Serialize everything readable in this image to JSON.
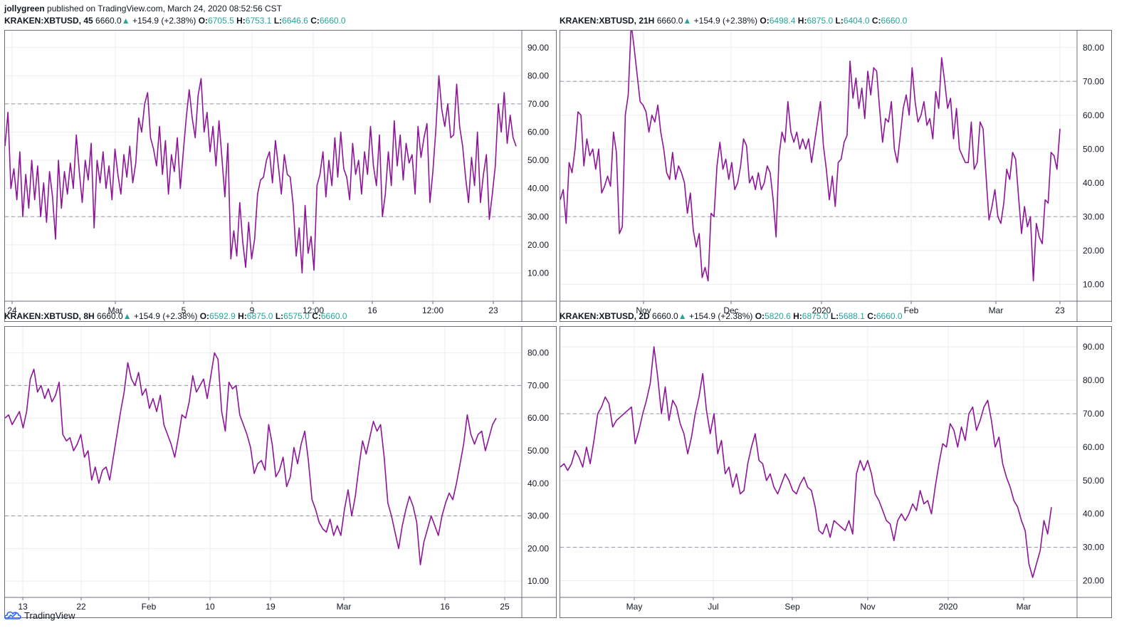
{
  "publish": {
    "author": "jollygreen",
    "text": "published on TradingView.com, March 24, 2020 08:52:56 CST"
  },
  "footer": {
    "brand": "TradingView",
    "icon": "tradingview-cloud-logo-icon"
  },
  "colors": {
    "line": "#8e1599",
    "up": "#26a69a",
    "grid": "#e9edf2",
    "level": "#9598a1"
  },
  "panels": [
    {
      "symbol": "KRAKEN:XBTUSD, 45",
      "price": "6660.0",
      "arrow": "▲",
      "change": "+154.9 (+2.38%)",
      "o": "6705.5",
      "h": "6753.1",
      "l": "6646.6",
      "c": "6660.0",
      "chart_data": {
        "type": "line",
        "y_ticks": [
          "90.00",
          "80.00",
          "70.00",
          "60.00",
          "50.00",
          "40.00",
          "30.00",
          "20.00",
          "10.00"
        ],
        "ylim": [
          0,
          96
        ],
        "levels": [
          70,
          30
        ],
        "x_ticks": [
          "24",
          "Mar",
          "5",
          "9",
          "12:00",
          "16",
          "12:00",
          "23"
        ],
        "series": [
          {
            "values": [
              55,
              67,
              40,
              47,
              36,
              53,
              30,
              45,
              33,
              50,
              36,
              48,
              30,
              42,
              28,
              46,
              37,
              22,
              50,
              33,
              46,
              38,
              49,
              40,
              59,
              46,
              35,
              50,
              43,
              56,
              26,
              50,
              42,
              53,
              40,
              48,
              36,
              54,
              45,
              38,
              52,
              44,
              55,
              42,
              49,
              65,
              60,
              70,
              74,
              58,
              54,
              48,
              62,
              45,
              57,
              38,
              52,
              46,
              58,
              40,
              53,
              65,
              75,
              65,
              58,
              73,
              79,
              60,
              67,
              53,
              62,
              48,
              64,
              51,
              37,
              56,
              15,
              25,
              16,
              35,
              21,
              12,
              28,
              15,
              22,
              38,
              43,
              44,
              50,
              53,
              42,
              57,
              48,
              38,
              52,
              45,
              44,
              34,
              16,
              26,
              10,
              34,
              17,
              23,
              11,
              41,
              45,
              53,
              37,
              50,
              41,
              58,
              44,
              60,
              47,
              44,
              36,
              56,
              45,
              50,
              38,
              53,
              45,
              62,
              48,
              41,
              59,
              30,
              38,
              53,
              41,
              64,
              48,
              59,
              43,
              56,
              49,
              52,
              38,
              62,
              51,
              58,
              63,
              35,
              46,
              61,
              80,
              68,
              62,
              70,
              58,
              59,
              77,
              62,
              55,
              44,
              35,
              51,
              41,
              60,
              35,
              45,
              52,
              29,
              38,
              48,
              70,
              60,
              74,
              56,
              66,
              58,
              55
            ]
          }
        ]
      }
    },
    {
      "symbol": "KRAKEN:XBTUSD, 21H",
      "price": "6660.0",
      "arrow": "▲",
      "change": "+154.9 (+2.38%)",
      "o": "6498.4",
      "h": "6875.0",
      "l": "6404.0",
      "c": "6660.0",
      "chart_data": {
        "type": "line",
        "y_ticks": [
          "80.00",
          "70.00",
          "60.00",
          "50.00",
          "40.00",
          "30.00",
          "20.00",
          "10.00"
        ],
        "ylim": [
          5,
          85
        ],
        "levels": [
          70,
          30
        ],
        "x_ticks": [
          "Nov",
          "Dec",
          "2020",
          "Feb",
          "Mar",
          "23"
        ],
        "series": [
          {
            "values": [
              35,
              38,
              28,
              46,
              43,
              50,
              61,
              60,
              45,
              53,
              48,
              50,
              44,
              50,
              37,
              39,
              42,
              39,
              55,
              49,
              25,
              27,
              60,
              66,
              87,
              80,
              72,
              64,
              63,
              61,
              55,
              60,
              58,
              63,
              55,
              50,
              43,
              41,
              49,
              41,
              45,
              43,
              40,
              31,
              37,
              26,
              21,
              25,
              12,
              15,
              11,
              31,
              30,
              45,
              52,
              44,
              47,
              41,
              46,
              38,
              40,
              45,
              53,
              51,
              40,
              42,
              38,
              43,
              38,
              40,
              45,
              43,
              35,
              24,
              48,
              55,
              52,
              64,
              55,
              52,
              55,
              50,
              53,
              50,
              53,
              46,
              52,
              58,
              64,
              51,
              44,
              35,
              42,
              33,
              46,
              47,
              52,
              54,
              76,
              65,
              71,
              62,
              68,
              59,
              73,
              66,
              74,
              73,
              62,
              52,
              59,
              58,
              64,
              50,
              46,
              54,
              62,
              66,
              60,
              74,
              64,
              58,
              60,
              64,
              57,
              59,
              53,
              67,
              62,
              77,
              70,
              62,
              65,
              53,
              62,
              50,
              48,
              46,
              46,
              58,
              44,
              46,
              58,
              56,
              42,
              29,
              33,
              38,
              30,
              28,
              34,
              44,
              41,
              49,
              47,
              36,
              25,
              33,
              27,
              30,
              11,
              28,
              24,
              22,
              35,
              34,
              49,
              48,
              44,
              56
            ]
          }
        ]
      }
    },
    {
      "symbol": "KRAKEN:XBTUSD, 8H",
      "price": "6660.0",
      "arrow": "▲",
      "change": "+154.9 (+2.38%)",
      "o": "6592.9",
      "h": "6875.0",
      "l": "6575.0",
      "c": "6660.0",
      "chart_data": {
        "type": "line",
        "y_ticks": [
          "80.00",
          "70.00",
          "60.00",
          "50.00",
          "40.00",
          "30.00",
          "20.00",
          "10.00"
        ],
        "ylim": [
          5,
          88
        ],
        "levels": [
          70,
          30
        ],
        "x_ticks": [
          "13",
          "22",
          "Feb",
          "10",
          "19",
          "Mar",
          "16",
          "25"
        ],
        "series": [
          {
            "values": [
              60,
              61,
              58,
              60,
              62,
              57,
              62,
              72,
              75,
              68,
              70,
              66,
              69,
              65,
              67,
              71,
              55,
              53,
              54,
              50,
              52,
              55,
              48,
              50,
              41,
              45,
              40,
              44,
              45,
              41,
              48,
              55,
              62,
              68,
              77,
              72,
              70,
              74,
              67,
              69,
              63,
              66,
              62,
              67,
              58,
              55,
              52,
              48,
              54,
              61,
              60,
              65,
              73,
              68,
              70,
              72,
              66,
              73,
              80,
              78,
              62,
              56,
              71,
              69,
              70,
              61,
              58,
              55,
              51,
              43,
              46,
              47,
              44,
              58,
              52,
              42,
              44,
              48,
              39,
              42,
              51,
              46,
              52,
              56,
              47,
              35,
              32,
              28,
              26,
              25,
              29,
              24,
              27,
              24,
              32,
              38,
              30,
              36,
              45,
              53,
              49,
              54,
              59,
              56,
              58,
              48,
              34,
              30,
              25,
              20,
              27,
              32,
              36,
              33,
              28,
              15,
              22,
              26,
              30,
              27,
              24,
              30,
              34,
              37,
              35,
              40,
              46,
              52,
              61,
              55,
              52,
              55,
              56,
              50,
              54,
              58,
              60
            ]
          }
        ]
      }
    },
    {
      "symbol": "KRAKEN:XBTUSD, 2D",
      "price": "6660.0",
      "arrow": "▲",
      "change": "+154.9 (+2.38%)",
      "o": "5820.6",
      "h": "6875.0",
      "l": "5688.1",
      "c": "6660.0",
      "chart_data": {
        "type": "line",
        "y_ticks": [
          "90.00",
          "80.00",
          "70.00",
          "60.00",
          "50.00",
          "40.00",
          "30.00",
          "20.00"
        ],
        "ylim": [
          15,
          96
        ],
        "levels": [
          70,
          30
        ],
        "x_ticks": [
          "May",
          "Jul",
          "Sep",
          "Nov",
          "2020",
          "Mar"
        ],
        "series": [
          {
            "values": [
              54,
              55,
              53,
              55,
              59,
              57,
              54,
              60,
              55,
              62,
              70,
              72,
              75,
              73,
              66,
              68,
              69,
              70,
              71,
              72,
              61,
              65,
              70,
              74,
              79,
              90,
              81,
              70,
              78,
              68,
              74,
              72,
              67,
              64,
              58,
              63,
              70,
              75,
              82,
              71,
              64,
              70,
              58,
              62,
              52,
              54,
              48,
              52,
              46,
              47,
              55,
              60,
              64,
              56,
              55,
              50,
              52,
              48,
              46,
              49,
              52,
              50,
              47,
              46,
              49,
              51,
              48,
              47,
              42,
              35,
              34,
              37,
              33,
              38,
              37,
              36,
              35,
              38,
              34,
              52,
              56,
              53,
              56,
              52,
              46,
              44,
              41,
              38,
              37,
              32,
              38,
              40,
              38,
              40,
              43,
              41,
              47,
              43,
              44,
              40,
              48,
              55,
              61,
              60,
              67,
              65,
              60,
              66,
              62,
              70,
              72,
              65,
              68,
              72,
              74,
              68,
              60,
              63,
              55,
              51,
              48,
              44,
              42,
              38,
              35,
              25,
              21,
              25,
              29,
              38,
              34,
              42
            ]
          }
        ]
      }
    }
  ]
}
